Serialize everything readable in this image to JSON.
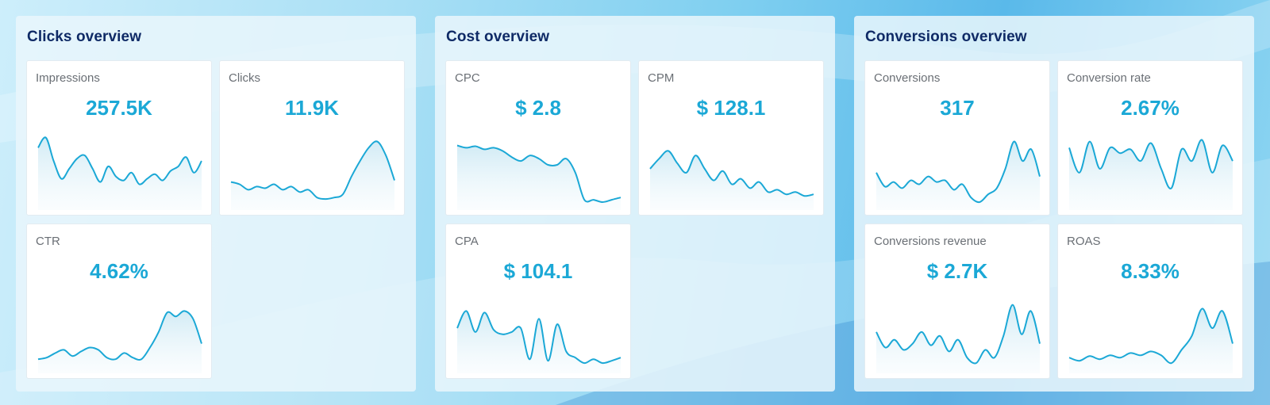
{
  "panels": [
    {
      "title": "Clicks overview",
      "cards": [
        {
          "label": "Impressions",
          "value": "257.5K",
          "trend": [
            0.72,
            0.85,
            0.55,
            0.32,
            0.45,
            0.58,
            0.62,
            0.45,
            0.28,
            0.48,
            0.35,
            0.3,
            0.4,
            0.25,
            0.32,
            0.38,
            0.3,
            0.42,
            0.48,
            0.6,
            0.4,
            0.55
          ]
        },
        {
          "label": "Clicks",
          "value": "11.9K",
          "trend": [
            0.28,
            0.25,
            0.18,
            0.22,
            0.2,
            0.25,
            0.18,
            0.22,
            0.15,
            0.18,
            0.08,
            0.06,
            0.08,
            0.12,
            0.35,
            0.55,
            0.72,
            0.8,
            0.62,
            0.3
          ]
        },
        {
          "label": "CTR",
          "value": "4.62%",
          "trend": [
            0.1,
            0.12,
            0.18,
            0.22,
            0.14,
            0.2,
            0.25,
            0.22,
            0.12,
            0.1,
            0.18,
            0.12,
            0.1,
            0.25,
            0.45,
            0.7,
            0.65,
            0.72,
            0.62,
            0.3
          ]
        }
      ]
    },
    {
      "title": "Cost overview",
      "cards": [
        {
          "label": "CPC",
          "value": "$ 2.8",
          "trend": [
            0.75,
            0.72,
            0.74,
            0.7,
            0.72,
            0.68,
            0.6,
            0.55,
            0.62,
            0.58,
            0.5,
            0.5,
            0.58,
            0.4,
            0.05,
            0.05,
            0.02,
            0.05,
            0.08
          ]
        },
        {
          "label": "CPM",
          "value": "$ 128.1",
          "trend": [
            0.45,
            0.58,
            0.68,
            0.52,
            0.4,
            0.62,
            0.45,
            0.3,
            0.42,
            0.25,
            0.32,
            0.2,
            0.28,
            0.15,
            0.18,
            0.12,
            0.15,
            0.1,
            0.12
          ]
        },
        {
          "label": "CPA",
          "value": "$ 104.1",
          "trend": [
            0.5,
            0.72,
            0.45,
            0.7,
            0.48,
            0.42,
            0.45,
            0.5,
            0.1,
            0.62,
            0.08,
            0.55,
            0.2,
            0.12,
            0.05,
            0.1,
            0.05,
            0.08,
            0.12
          ]
        }
      ]
    },
    {
      "title": "Conversions overview",
      "cards": [
        {
          "label": "Conversions",
          "value": "317",
          "trend": [
            0.4,
            0.22,
            0.28,
            0.2,
            0.3,
            0.25,
            0.35,
            0.28,
            0.3,
            0.18,
            0.25,
            0.08,
            0.02,
            0.12,
            0.2,
            0.45,
            0.8,
            0.55,
            0.7,
            0.35
          ]
        },
        {
          "label": "Conversion rate",
          "value": "2.67%",
          "trend": [
            0.72,
            0.4,
            0.8,
            0.45,
            0.72,
            0.65,
            0.7,
            0.55,
            0.78,
            0.45,
            0.2,
            0.7,
            0.55,
            0.82,
            0.4,
            0.75,
            0.55
          ]
        },
        {
          "label": "Conversions revenue",
          "value": "$ 2.7K",
          "trend": [
            0.45,
            0.25,
            0.35,
            0.22,
            0.3,
            0.45,
            0.28,
            0.4,
            0.2,
            0.35,
            0.12,
            0.05,
            0.22,
            0.12,
            0.4,
            0.8,
            0.42,
            0.72,
            0.3
          ]
        },
        {
          "label": "ROAS",
          "value": "8.33%",
          "trend": [
            0.12,
            0.08,
            0.14,
            0.1,
            0.15,
            0.12,
            0.18,
            0.15,
            0.2,
            0.15,
            0.05,
            0.22,
            0.4,
            0.75,
            0.5,
            0.72,
            0.3
          ]
        }
      ]
    }
  ]
}
